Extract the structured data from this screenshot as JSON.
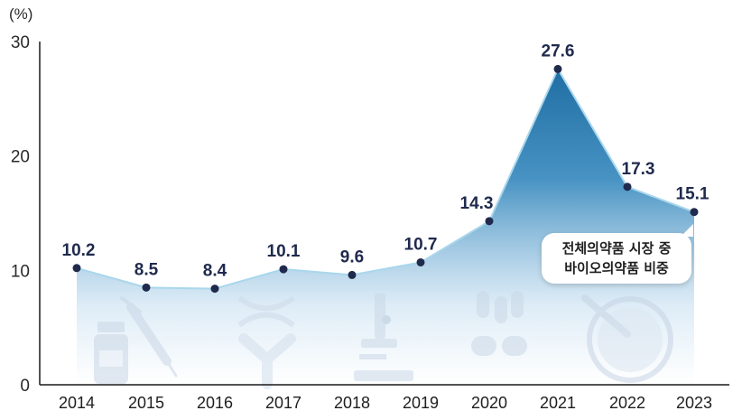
{
  "chart_data": {
    "type": "area",
    "x": [
      "2014",
      "2015",
      "2016",
      "2017",
      "2018",
      "2019",
      "2020",
      "2021",
      "2022",
      "2023"
    ],
    "values": [
      10.2,
      8.5,
      8.4,
      10.1,
      9.6,
      10.7,
      14.3,
      27.6,
      17.3,
      15.1
    ],
    "data_labels": [
      "10.2",
      "8.5",
      "8.4",
      "10.1",
      "9.6",
      "10.7",
      "14.3",
      "27.6",
      "17.3",
      "15.1"
    ],
    "y_unit_label": "(%)",
    "yticks": [
      "0",
      "10",
      "20",
      "30"
    ],
    "ylim": [
      0,
      30
    ],
    "grid": false,
    "annotation_lines": [
      "전체의약품 시장 중",
      "바이오의약품 비중"
    ],
    "colors": {
      "area_top": "#2b7bb0",
      "area_bottom": "#ffffff",
      "line": "#a9d7ec",
      "marker": "#1f2a4d",
      "label": "#1f2a4d",
      "axis": "#1a1a1a"
    },
    "background_icons": [
      "medicine-bottle-icon",
      "syringe-icon",
      "dna-icon",
      "antibody-icon",
      "microscope-icon",
      "pill-capsules-icon",
      "petri-dish-icon"
    ]
  }
}
